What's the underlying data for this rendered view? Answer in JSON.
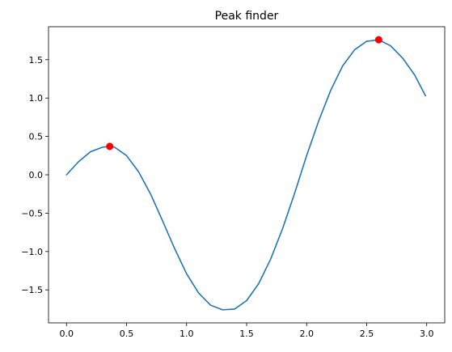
{
  "chart_data": {
    "type": "line",
    "title": "Peak finder",
    "xlabel": "",
    "ylabel": "",
    "xlim": [
      -0.15,
      3.15
    ],
    "ylim": [
      -1.93,
      1.93
    ],
    "x_ticks": [
      0.0,
      0.5,
      1.0,
      1.5,
      2.0,
      2.5,
      3.0
    ],
    "x_tick_labels": [
      "0.0",
      "0.5",
      "1.0",
      "1.5",
      "2.0",
      "2.5",
      "3.0"
    ],
    "y_ticks": [
      -1.5,
      -1.0,
      -0.5,
      0.0,
      0.5,
      1.0,
      1.5
    ],
    "y_tick_labels": [
      "−1.5",
      "−1.0",
      "−0.5",
      "0.0",
      "0.5",
      "1.0",
      "1.5"
    ],
    "grid": false,
    "series": [
      {
        "color": "#1f77b4",
        "x": [
          0.0,
          0.1,
          0.2,
          0.3,
          0.36,
          0.4,
          0.5,
          0.6,
          0.7,
          0.8,
          0.9,
          1.0,
          1.1,
          1.2,
          1.3,
          1.4,
          1.5,
          1.6,
          1.7,
          1.8,
          1.9,
          2.0,
          2.1,
          2.2,
          2.3,
          2.4,
          2.5,
          2.6,
          2.7,
          2.8,
          2.9,
          2.99
        ],
        "y": [
          0.0,
          0.17,
          0.3,
          0.36,
          0.37,
          0.36,
          0.25,
          0.04,
          -0.25,
          -0.6,
          -0.96,
          -1.29,
          -1.54,
          -1.7,
          -1.76,
          -1.75,
          -1.64,
          -1.42,
          -1.1,
          -0.7,
          -0.24,
          0.25,
          0.7,
          1.1,
          1.42,
          1.63,
          1.74,
          1.76,
          1.68,
          1.52,
          1.3,
          1.03
        ]
      }
    ],
    "peaks": {
      "color": "#ff0000",
      "x": [
        0.36,
        2.6
      ],
      "y": [
        0.37,
        1.76
      ]
    }
  }
}
